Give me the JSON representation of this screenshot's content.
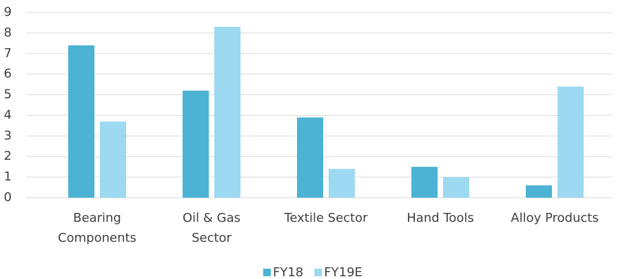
{
  "chart_data": {
    "type": "bar",
    "categories": [
      "Bearing Components",
      "Oil & Gas Sector",
      "Textile Sector",
      "Hand Tools",
      "Alloy Products"
    ],
    "series": [
      {
        "name": "FY18",
        "color": "#4cb3d4",
        "values": [
          7.4,
          5.2,
          3.9,
          1.5,
          0.6
        ]
      },
      {
        "name": "FY19E",
        "color": "#9dd9f1",
        "values": [
          3.7,
          8.3,
          1.4,
          1.0,
          5.4
        ]
      }
    ],
    "ylim": [
      0,
      9
    ],
    "yticks": [
      0,
      1,
      2,
      3,
      4,
      5,
      6,
      7,
      8,
      9
    ],
    "grid": true,
    "legend": "bottom"
  }
}
